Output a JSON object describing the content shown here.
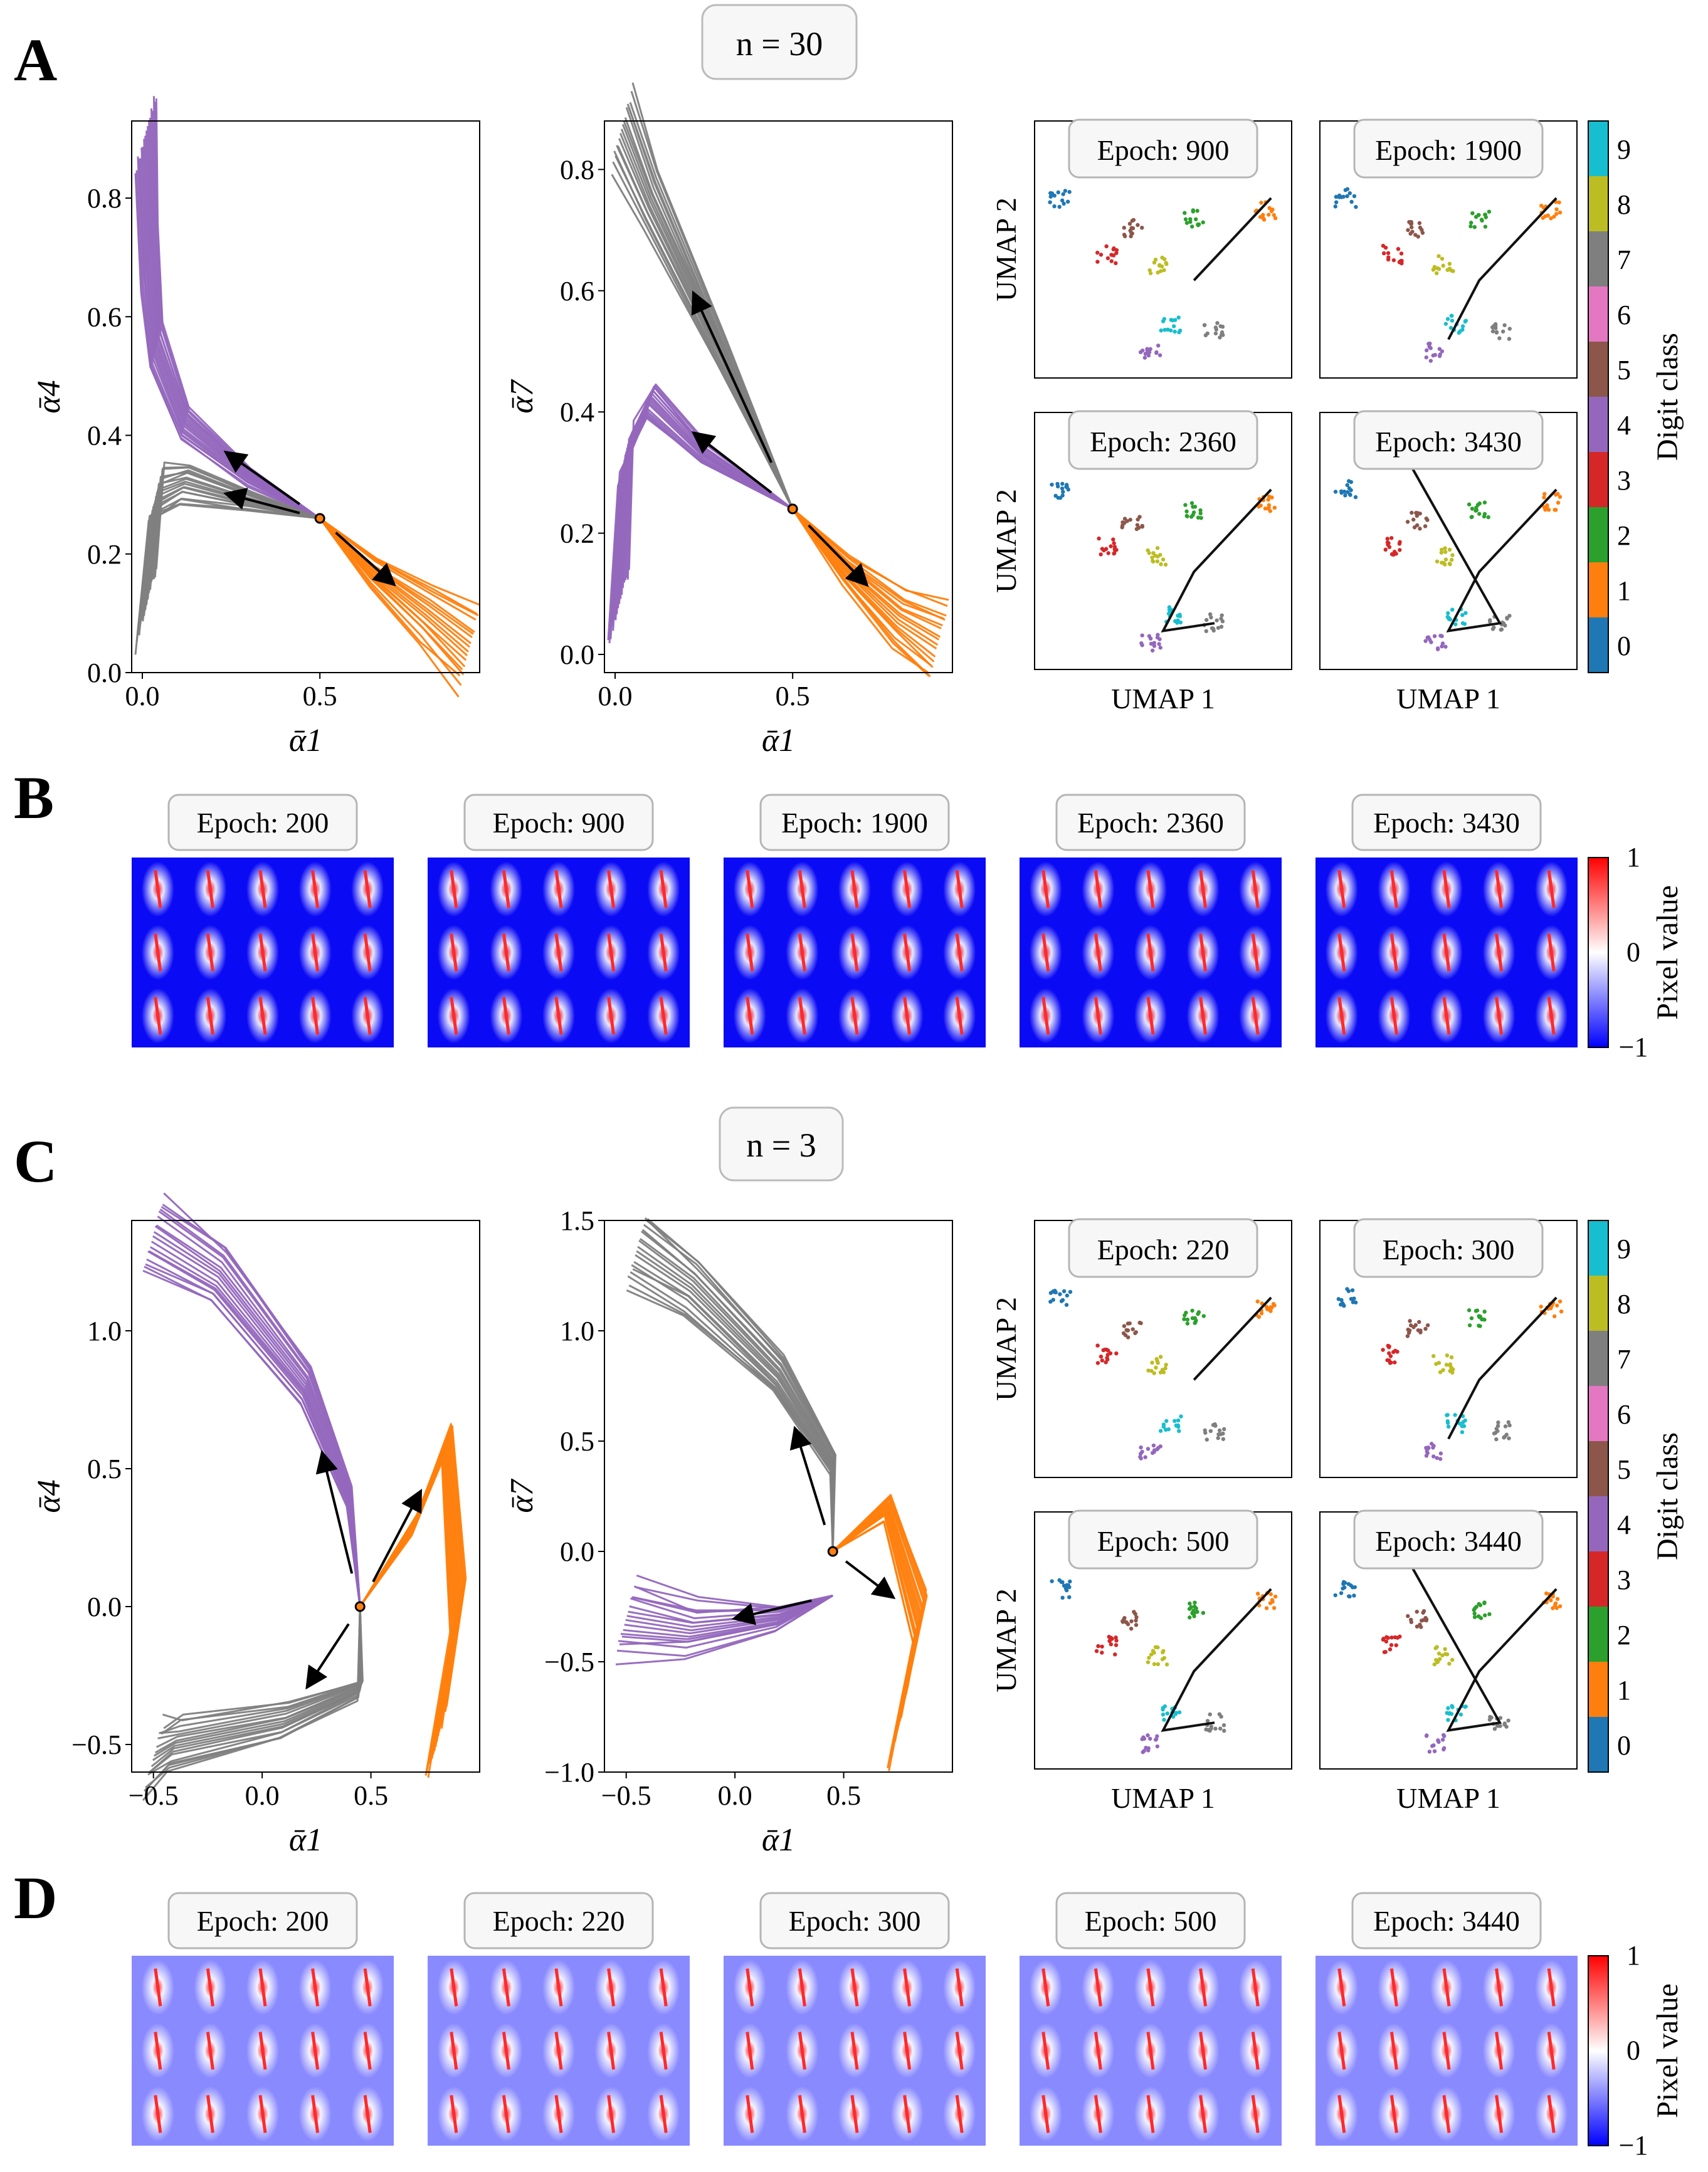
{
  "panel_labels": [
    "A",
    "B",
    "C",
    "D"
  ],
  "n_labels": [
    "n = 30",
    "n = 3"
  ],
  "colors": {
    "digit": [
      "#1f77b4",
      "#ff7f0e",
      "#2ca02c",
      "#d62728",
      "#9467bd",
      "#8c564b",
      "#e377c2",
      "#7f7f7f",
      "#bcbd22",
      "#17becf"
    ],
    "purple": "#9467bd",
    "gray": "#7f7f7f",
    "orange": "#ff7f0e",
    "pixel_low": "#0000ff",
    "pixel_mid": "#ffffff",
    "pixel_high": "#ff0000"
  },
  "digit_colorbar": {
    "label": "Digit class",
    "ticks": [
      "0",
      "1",
      "2",
      "3",
      "4",
      "5",
      "6",
      "7",
      "8",
      "9"
    ]
  },
  "pixel_colorbar": {
    "label": "Pixel value",
    "ticks": [
      "1",
      "0",
      "−1"
    ]
  },
  "umap_labels": {
    "x": "UMAP 1",
    "y": "UMAP 2"
  },
  "umap_epochs": {
    "A": [
      "Epoch: 900",
      "Epoch: 1900",
      "Epoch: 2360",
      "Epoch: 3430"
    ],
    "C": [
      "Epoch: 220",
      "Epoch: 300",
      "Epoch: 500",
      "Epoch: 3440"
    ]
  },
  "image_epochs": {
    "B": [
      "Epoch: 200",
      "Epoch: 900",
      "Epoch: 1900",
      "Epoch: 2360",
      "Epoch: 3430"
    ],
    "D": [
      "Epoch: 200",
      "Epoch: 220",
      "Epoch: 300",
      "Epoch: 500",
      "Epoch: 3440"
    ]
  },
  "chart_data": [
    {
      "id": "A-left",
      "type": "line",
      "xlabel": "ᾱ1",
      "ylabel": "ᾱ4",
      "xlim": [
        -0.03,
        0.95
      ],
      "ylim": [
        0.0,
        0.93
      ],
      "xticks": [
        "0.0",
        "0.5"
      ],
      "yticks": [
        "0.0",
        "0.2",
        "0.4",
        "0.6",
        "0.8"
      ],
      "series": [
        {
          "color": "purple",
          "points": [
            [
              0.5,
              0.26
            ],
            [
              0.3,
              0.33
            ],
            [
              0.12,
              0.42
            ],
            [
              0.04,
              0.55
            ],
            [
              0.02,
              0.7
            ],
            [
              0.01,
              0.91
            ]
          ]
        },
        {
          "color": "gray",
          "points": [
            [
              0.5,
              0.26
            ],
            [
              0.3,
              0.29
            ],
            [
              0.12,
              0.32
            ],
            [
              0.04,
              0.3
            ],
            [
              0.01,
              0.11
            ]
          ]
        },
        {
          "color": "orange",
          "points": [
            [
              0.5,
              0.26
            ],
            [
              0.65,
              0.17
            ],
            [
              0.8,
              0.1
            ],
            [
              0.92,
              0.04
            ]
          ]
        }
      ]
    },
    {
      "id": "A-mid",
      "type": "line",
      "xlabel": "ᾱ1",
      "ylabel": "ᾱ7",
      "xlim": [
        -0.03,
        0.95
      ],
      "ylim": [
        -0.03,
        0.88
      ],
      "xticks": [
        "0.0",
        "0.5"
      ],
      "yticks": [
        "0.0",
        "0.2",
        "0.4",
        "0.6",
        "0.8"
      ],
      "series": [
        {
          "color": "gray",
          "points": [
            [
              0.5,
              0.24
            ],
            [
              0.3,
              0.5
            ],
            [
              0.1,
              0.75
            ],
            [
              0.02,
              0.87
            ]
          ]
        },
        {
          "color": "purple",
          "points": [
            [
              0.5,
              0.24
            ],
            [
              0.25,
              0.33
            ],
            [
              0.1,
              0.42
            ],
            [
              0.03,
              0.33
            ],
            [
              0.01,
              0.08
            ]
          ]
        },
        {
          "color": "orange",
          "points": [
            [
              0.5,
              0.24
            ],
            [
              0.65,
              0.14
            ],
            [
              0.8,
              0.06
            ],
            [
              0.91,
              0.02
            ]
          ]
        }
      ]
    },
    {
      "id": "C-left",
      "type": "line",
      "xlabel": "ᾱ1",
      "ylabel": "ᾱ4",
      "xlim": [
        -0.6,
        1.0
      ],
      "ylim": [
        -0.6,
        1.4
      ],
      "xticks": [
        "−0.5",
        "0.0",
        "0.5"
      ],
      "yticks": [
        "−0.5",
        "0.0",
        "0.5",
        "1.0"
      ],
      "series": [
        {
          "color": "purple",
          "points": [
            [
              0.45,
              0.0
            ],
            [
              0.4,
              0.4
            ],
            [
              0.2,
              0.8
            ],
            [
              -0.2,
              1.2
            ],
            [
              -0.5,
              1.35
            ]
          ]
        },
        {
          "color": "gray",
          "points": [
            [
              0.45,
              0.0
            ],
            [
              0.45,
              -0.3
            ],
            [
              0.1,
              -0.42
            ],
            [
              -0.4,
              -0.5
            ],
            [
              -0.5,
              -0.55
            ]
          ]
        },
        {
          "color": "orange",
          "points": [
            [
              0.45,
              0.0
            ],
            [
              0.7,
              0.3
            ],
            [
              0.85,
              0.6
            ],
            [
              0.9,
              0.0
            ],
            [
              0.8,
              -0.5
            ]
          ]
        }
      ]
    },
    {
      "id": "C-mid",
      "type": "line",
      "xlabel": "ᾱ1",
      "ylabel": "ᾱ7",
      "xlim": [
        -0.6,
        1.0
      ],
      "ylim": [
        -1.0,
        1.5
      ],
      "xticks": [
        "−0.5",
        "0.0",
        "0.5"
      ],
      "yticks": [
        "−1.0",
        "−0.5",
        "0.0",
        "0.5",
        "1.0",
        "1.5"
      ],
      "series": [
        {
          "color": "gray",
          "points": [
            [
              0.45,
              0.0
            ],
            [
              0.45,
              0.4
            ],
            [
              0.2,
              0.8
            ],
            [
              -0.2,
              1.2
            ],
            [
              -0.45,
              1.37
            ]
          ]
        },
        {
          "color": "purple",
          "points": [
            [
              0.45,
              -0.2
            ],
            [
              0.2,
              -0.3
            ],
            [
              -0.2,
              -0.35
            ],
            [
              -0.5,
              -0.3
            ]
          ]
        },
        {
          "color": "orange",
          "points": [
            [
              0.45,
              0.0
            ],
            [
              0.7,
              0.2
            ],
            [
              0.85,
              -0.3
            ],
            [
              0.75,
              -0.8
            ]
          ]
        }
      ]
    }
  ]
}
